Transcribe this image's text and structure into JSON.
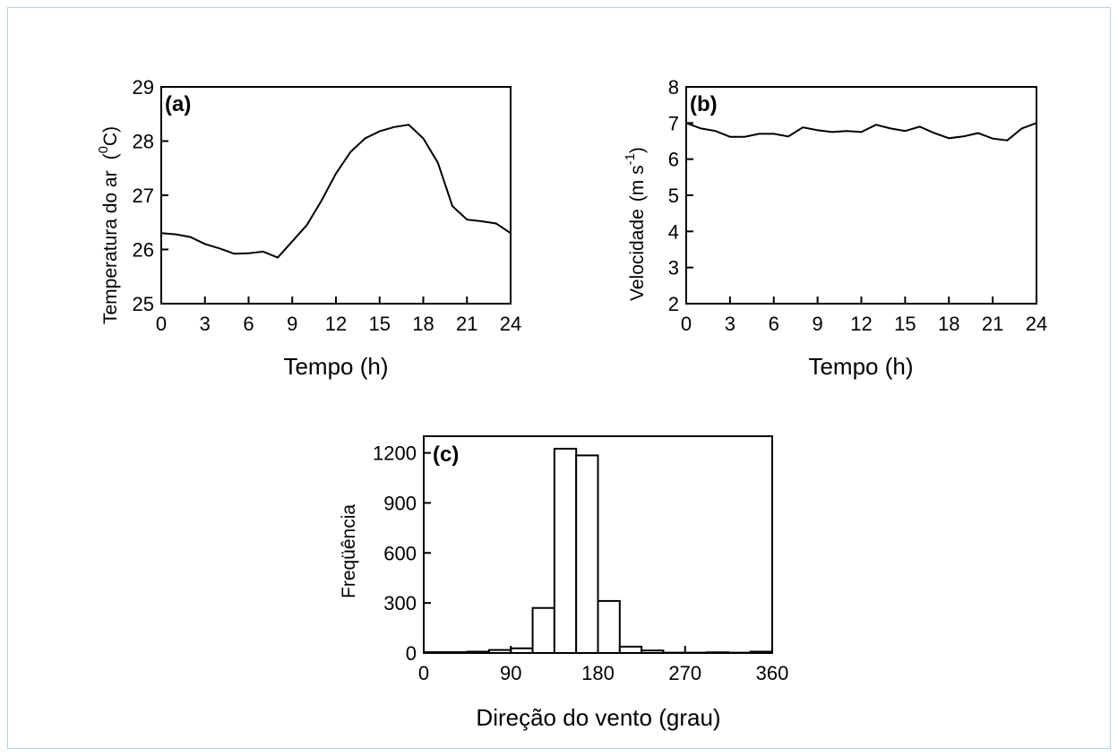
{
  "chart_data": [
    {
      "panel": "(a)",
      "type": "line",
      "xlabel": "Tempo (h)",
      "ylabel": "Temperatura do ar",
      "ylabel_unit_base": "C",
      "ylabel_unit_sup": "0",
      "xlim": [
        0,
        24
      ],
      "ylim": [
        25,
        29
      ],
      "xticks": [
        0,
        3,
        6,
        9,
        12,
        15,
        18,
        21,
        24
      ],
      "yticks": [
        25,
        26,
        27,
        28,
        29
      ],
      "x": [
        0,
        1,
        2,
        3,
        4,
        5,
        6,
        7,
        8,
        9,
        10,
        11,
        12,
        13,
        14,
        15,
        16,
        17,
        18,
        19,
        20,
        21,
        22,
        23,
        24
      ],
      "y": [
        26.3,
        26.28,
        26.23,
        26.1,
        26.02,
        25.92,
        25.93,
        25.96,
        25.85,
        26.15,
        26.45,
        26.9,
        27.4,
        27.8,
        28.05,
        28.18,
        28.26,
        28.3,
        28.05,
        27.6,
        26.8,
        26.55,
        26.52,
        26.48,
        26.3
      ]
    },
    {
      "panel": "(b)",
      "type": "line",
      "xlabel": "Tempo (h)",
      "ylabel": "Velocidade",
      "ylabel_unit_base": "(m s",
      "ylabel_unit_sup": "-1",
      "ylabel_unit_close": ")",
      "xlim": [
        0,
        24
      ],
      "ylim": [
        2,
        8
      ],
      "xticks": [
        0,
        3,
        6,
        9,
        12,
        15,
        18,
        21,
        24
      ],
      "yticks": [
        2,
        3,
        4,
        5,
        6,
        7,
        8
      ],
      "x": [
        0,
        1,
        2,
        3,
        4,
        5,
        6,
        7,
        8,
        9,
        10,
        11,
        12,
        13,
        14,
        15,
        16,
        17,
        18,
        19,
        20,
        21,
        22,
        23,
        24
      ],
      "y": [
        7.0,
        6.85,
        6.78,
        6.62,
        6.62,
        6.7,
        6.7,
        6.63,
        6.88,
        6.8,
        6.75,
        6.78,
        6.75,
        6.95,
        6.85,
        6.78,
        6.9,
        6.72,
        6.58,
        6.63,
        6.72,
        6.57,
        6.52,
        6.85,
        7.0
      ]
    },
    {
      "panel": "(c)",
      "type": "bar",
      "xlabel": "Direção do vento (grau)",
      "ylabel": "Freqüência",
      "xlim": [
        0,
        360
      ],
      "ylim": [
        0,
        1300
      ],
      "xticks": [
        0,
        90,
        180,
        270,
        360
      ],
      "yticks": [
        0,
        300,
        600,
        900,
        1200
      ],
      "bin_width": 22.5,
      "bin_starts": [
        0,
        22.5,
        45,
        67.5,
        90,
        112.5,
        135,
        157.5,
        180,
        202.5,
        225,
        247.5,
        270,
        292.5,
        315,
        337.5
      ],
      "values": [
        5,
        5,
        8,
        18,
        28,
        270,
        1225,
        1185,
        312,
        38,
        15,
        2,
        2,
        4,
        2,
        8
      ]
    }
  ]
}
